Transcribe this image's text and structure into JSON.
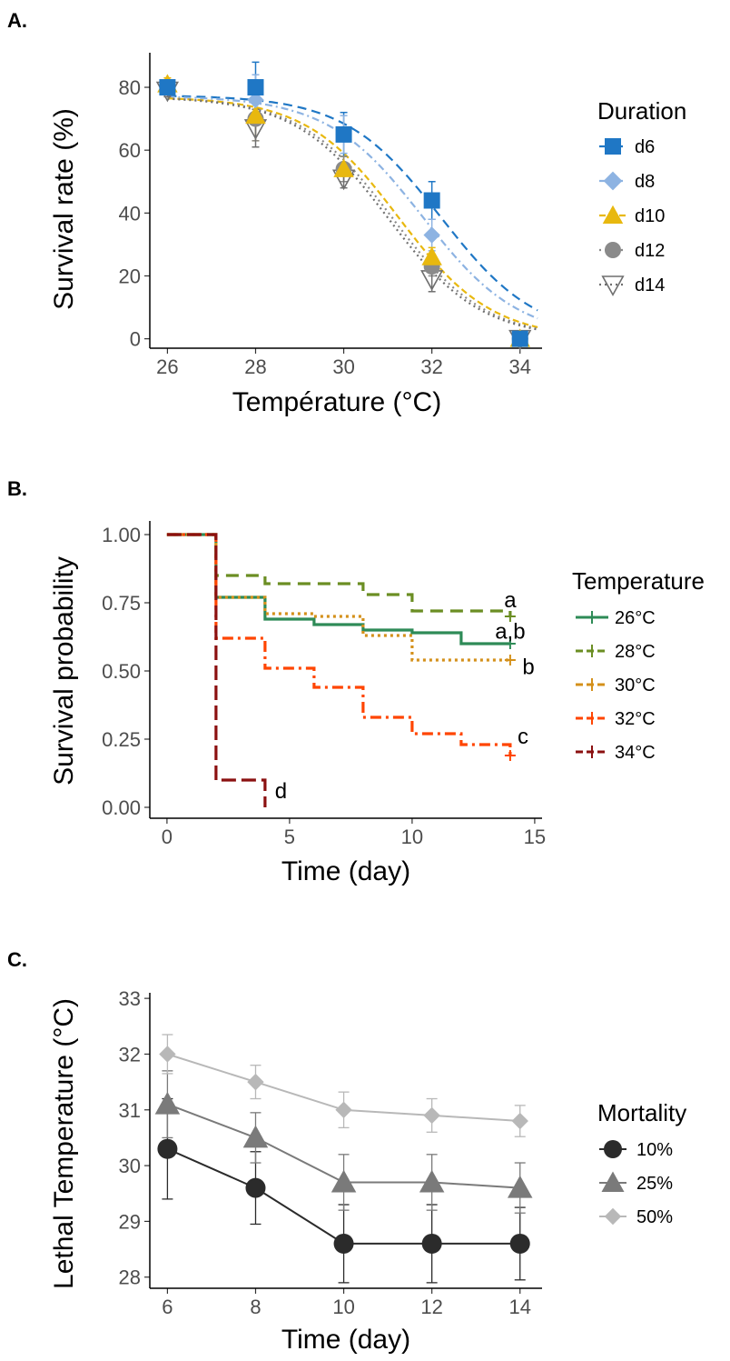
{
  "chart_data": [
    {
      "panel_label": "A.",
      "type": "line",
      "xlabel": "Température (°C)",
      "ylabel": "Survival rate (%)",
      "xlim": [
        25.6,
        34.5
      ],
      "ylim": [
        -3,
        91
      ],
      "xticks": [
        26,
        28,
        30,
        32,
        34
      ],
      "yticks": [
        0,
        20,
        40,
        60,
        80
      ],
      "grid": false,
      "legend": {
        "title": "Duration",
        "position": "right"
      },
      "x": [
        26,
        28,
        30,
        32,
        34
      ],
      "series": [
        {
          "name": "d6",
          "color": "#1f77c5",
          "marker": "square",
          "dash": "10,6",
          "values": [
            80,
            80,
            65,
            44,
            0
          ],
          "errors": [
            2,
            8,
            7,
            6,
            1
          ],
          "fit": {
            "top": 77.5,
            "x50": 32.2,
            "slope": 0.92
          }
        },
        {
          "name": "d8",
          "color": "#8db3e2",
          "marker": "diamond",
          "dash": "8,4,2,4",
          "values": [
            80,
            76,
            65,
            33,
            0
          ],
          "errors": [
            2,
            8,
            6,
            5,
            1
          ],
          "fit": {
            "top": 77.3,
            "x50": 31.8,
            "slope": 0.92
          }
        },
        {
          "name": "d10",
          "color": "#e8b80f",
          "marker": "triangle",
          "dash": "7,4",
          "values": [
            81,
            71,
            54,
            26,
            0
          ],
          "errors": [
            2,
            8,
            4,
            3,
            1
          ],
          "fit": {
            "top": 77.0,
            "x50": 31.25,
            "slope": 0.95
          }
        },
        {
          "name": "d12",
          "color": "#8a8a8a",
          "marker": "circle",
          "dash": "2,4",
          "values": [
            80,
            70,
            54,
            23,
            0
          ],
          "errors": [
            2,
            7,
            4,
            3,
            1
          ],
          "fit": {
            "top": 77.0,
            "x50": 31.1,
            "slope": 0.95
          }
        },
        {
          "name": "d14",
          "color": "#6f6f6f",
          "marker": "triangle-down-open",
          "dash": "2,4",
          "values": [
            79,
            67,
            51,
            19,
            0
          ],
          "errors": [
            2,
            6,
            3,
            4,
            1
          ],
          "fit": {
            "top": 77.0,
            "x50": 31.0,
            "slope": 0.95
          }
        }
      ]
    },
    {
      "panel_label": "B.",
      "type": "line",
      "xlabel": "Time (day)",
      "ylabel": "Survival probability",
      "xlim": [
        -0.7,
        15.3
      ],
      "ylim": [
        -0.04,
        1.05
      ],
      "xticks": [
        0,
        5,
        10,
        15
      ],
      "yticks": [
        "0.00",
        "0.25",
        "0.50",
        "0.75",
        "1.00"
      ],
      "grid": false,
      "legend": {
        "title": "Temperature",
        "position": "right"
      },
      "series": [
        {
          "name": "26°C",
          "color": "#2e8b57",
          "dash": "",
          "steps": [
            [
              0,
              1.0
            ],
            [
              2,
              0.77
            ],
            [
              4,
              0.69
            ],
            [
              6,
              0.67
            ],
            [
              8,
              0.65
            ],
            [
              10,
              0.64
            ],
            [
              12,
              0.6
            ],
            [
              14,
              0.6
            ]
          ],
          "annotation": "a,b"
        },
        {
          "name": "28°C",
          "color": "#6b8e23",
          "dash": "14,8",
          "steps": [
            [
              0,
              1.0
            ],
            [
              2,
              0.85
            ],
            [
              4,
              0.82
            ],
            [
              8,
              0.78
            ],
            [
              10,
              0.72
            ],
            [
              14,
              0.7
            ]
          ],
          "annotation": "a"
        },
        {
          "name": "30°C",
          "color": "#d4901a",
          "dash": "3,4",
          "steps": [
            [
              0,
              1.0
            ],
            [
              2,
              0.77
            ],
            [
              4,
              0.71
            ],
            [
              6,
              0.7
            ],
            [
              8,
              0.63
            ],
            [
              10,
              0.54
            ],
            [
              14,
              0.54
            ]
          ],
          "annotation": "b"
        },
        {
          "name": "32°C",
          "color": "#ff4500",
          "dash": "12,5,3,5",
          "steps": [
            [
              0,
              1.0
            ],
            [
              2,
              0.62
            ],
            [
              4,
              0.51
            ],
            [
              6,
              0.44
            ],
            [
              8,
              0.33
            ],
            [
              10,
              0.27
            ],
            [
              12,
              0.23
            ],
            [
              14,
              0.19
            ]
          ],
          "annotation": "c"
        },
        {
          "name": "34°C",
          "color": "#8b1010",
          "dash": "16,6",
          "steps": [
            [
              0,
              1.0
            ],
            [
              2,
              0.1
            ],
            [
              4,
              0.0
            ]
          ],
          "annotation": "d"
        }
      ]
    },
    {
      "panel_label": "C.",
      "type": "line",
      "xlabel": "Time (day)",
      "ylabel": "Lethal Temperature (°C)",
      "xlim": [
        5.6,
        14.5
      ],
      "ylim": [
        27.8,
        33.1
      ],
      "xticks": [
        6,
        8,
        10,
        12,
        14
      ],
      "yticks": [
        28,
        29,
        30,
        31,
        32,
        33
      ],
      "grid": false,
      "legend": {
        "title": "Mortality",
        "position": "right"
      },
      "x": [
        6,
        8,
        10,
        12,
        14
      ],
      "series": [
        {
          "name": "10%",
          "color": "#2b2b2b",
          "marker": "circle",
          "values": [
            30.3,
            29.6,
            28.6,
            28.6,
            28.6
          ],
          "errors": [
            0.9,
            0.65,
            0.7,
            0.7,
            0.65
          ]
        },
        {
          "name": "25%",
          "color": "#7a7a7a",
          "marker": "triangle",
          "values": [
            31.1,
            30.5,
            29.7,
            29.7,
            29.6
          ],
          "errors": [
            0.6,
            0.45,
            0.5,
            0.5,
            0.45
          ]
        },
        {
          "name": "50%",
          "color": "#b8b8b8",
          "marker": "diamond",
          "values": [
            32.0,
            31.5,
            31.0,
            30.9,
            30.8
          ],
          "errors": [
            0.35,
            0.3,
            0.32,
            0.3,
            0.28
          ]
        }
      ]
    }
  ]
}
